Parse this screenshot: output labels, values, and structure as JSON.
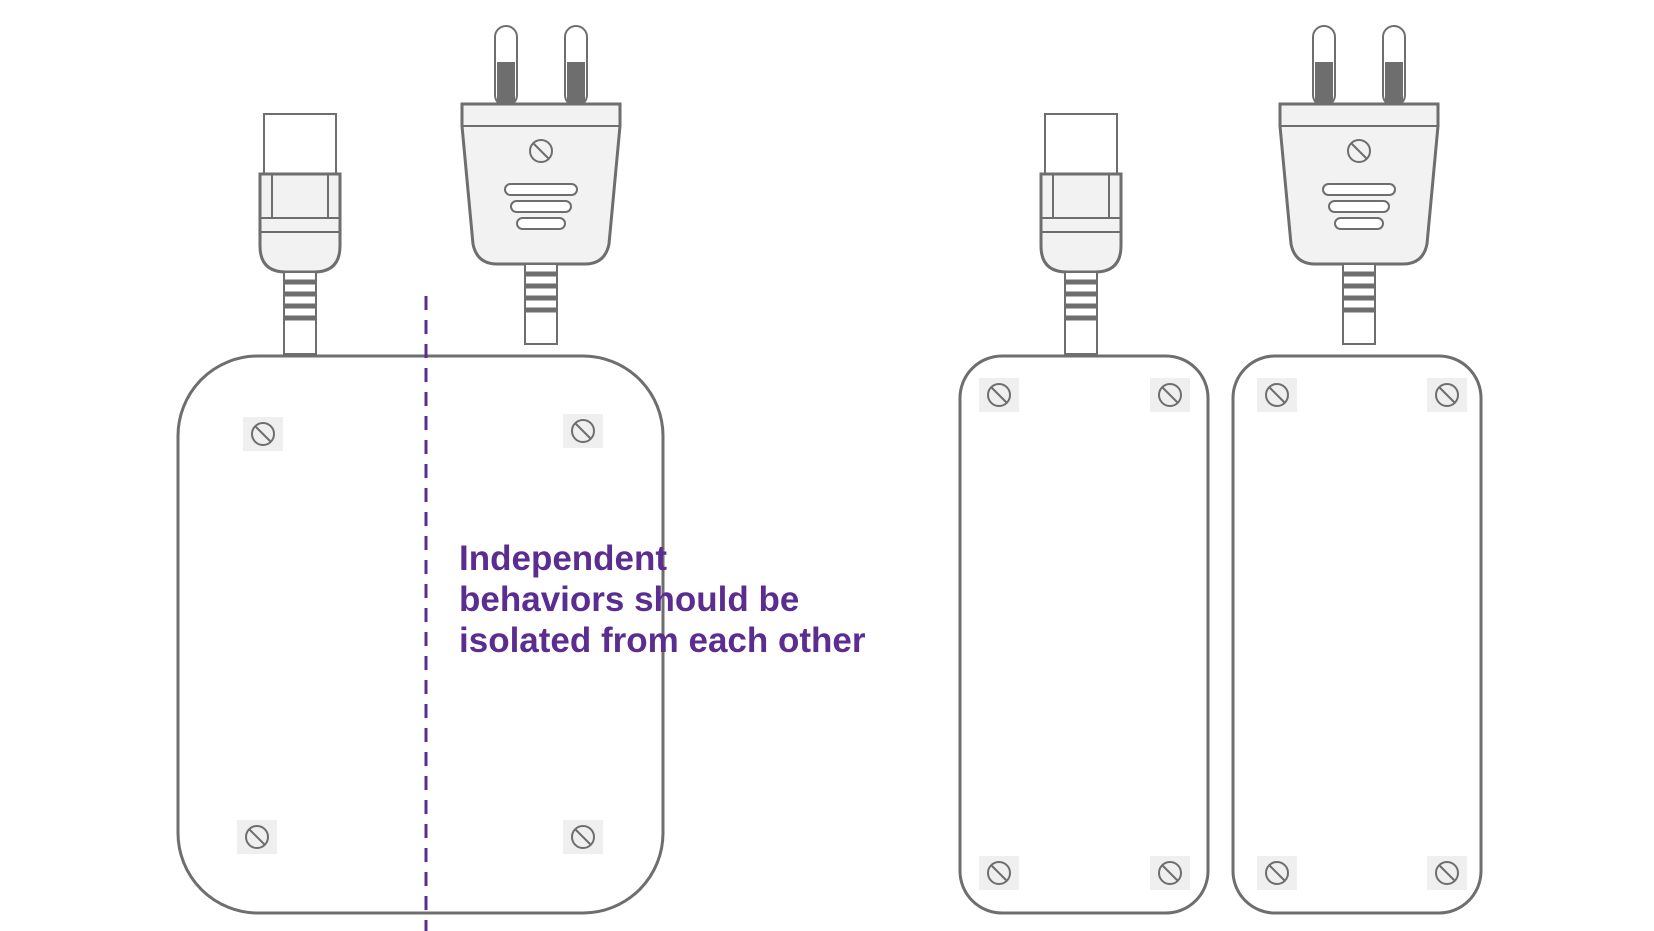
{
  "caption": {
    "lines": [
      "Independent",
      "behaviors should be",
      "isolated from each other"
    ]
  },
  "colors": {
    "accent": "#5b2d91",
    "outline": "#6e6e6e",
    "plug_fill": "#f2f2f2",
    "screw_pad": "#efefef"
  },
  "icons": {
    "screw": "screw-icon",
    "iec_connector": "iec-connector-icon",
    "wall_plug": "wall-plug-icon"
  }
}
